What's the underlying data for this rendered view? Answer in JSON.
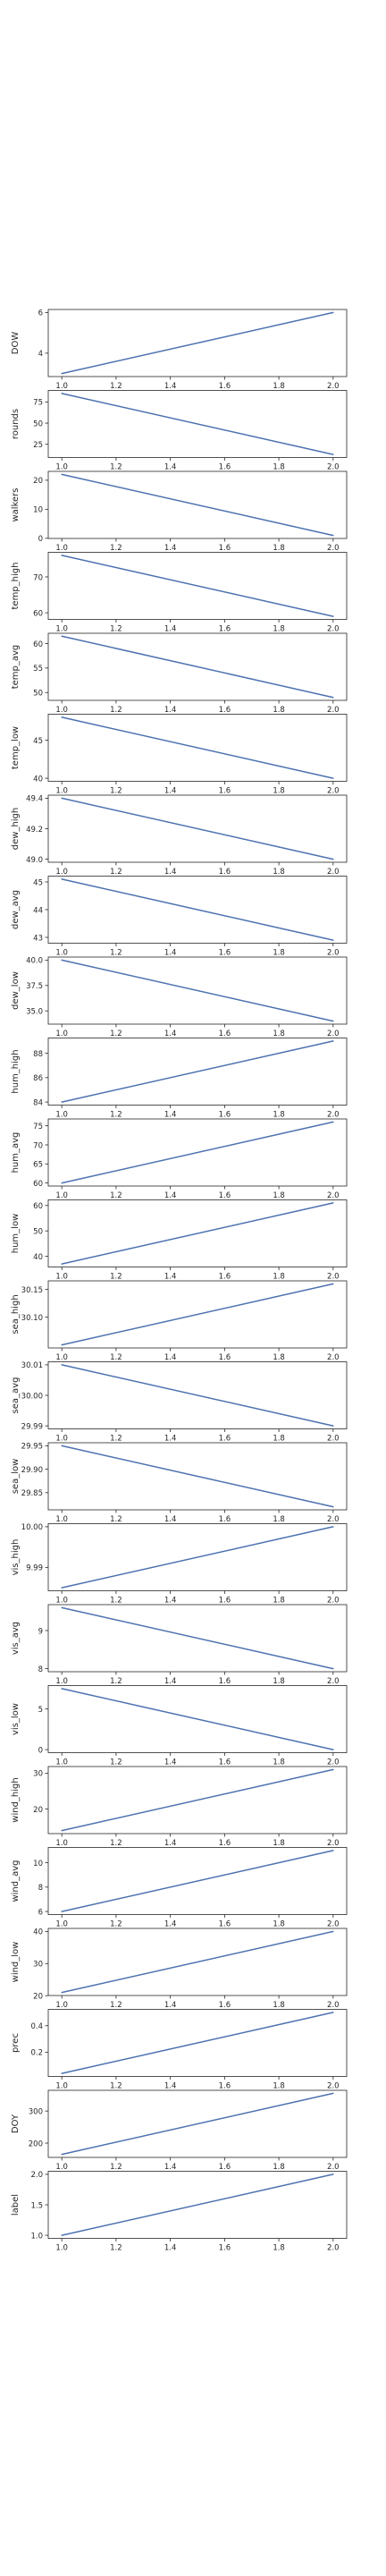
{
  "chart_data": [
    {
      "type": "line",
      "ylabel": "DOW",
      "x": [
        1,
        2
      ],
      "values": [
        3,
        6
      ],
      "yticks": [
        "4",
        "6"
      ],
      "ylim": [
        2.85,
        6.15
      ]
    },
    {
      "type": "line",
      "ylabel": "rounds",
      "x": [
        1,
        2
      ],
      "values": [
        85,
        13
      ],
      "yticks": [
        "25",
        "50",
        "75"
      ],
      "ylim": [
        9.4,
        88.6
      ]
    },
    {
      "type": "line",
      "ylabel": "walkers",
      "x": [
        1,
        2
      ],
      "values": [
        22,
        1
      ],
      "yticks": [
        "0",
        "10",
        "20"
      ],
      "ylim": [
        -0.05,
        23.05
      ]
    },
    {
      "type": "line",
      "ylabel": "temp_high",
      "x": [
        1,
        2
      ],
      "values": [
        76,
        59
      ],
      "yticks": [
        "60",
        "70"
      ],
      "ylim": [
        58.15,
        76.85
      ]
    },
    {
      "type": "line",
      "ylabel": "temp_avg",
      "x": [
        1,
        2
      ],
      "values": [
        61.5,
        49
      ],
      "yticks": [
        "50",
        "55",
        "60"
      ],
      "ylim": [
        48.4,
        62.1
      ]
    },
    {
      "type": "line",
      "ylabel": "temp_low",
      "x": [
        1,
        2
      ],
      "values": [
        48,
        40
      ],
      "yticks": [
        "40",
        "45"
      ],
      "ylim": [
        39.6,
        48.4
      ]
    },
    {
      "type": "line",
      "ylabel": "dew_high",
      "x": [
        1,
        2
      ],
      "values": [
        49.4,
        49
      ],
      "yticks": [
        "49.0",
        "49.2",
        "49.4"
      ],
      "ylim": [
        48.98,
        49.42
      ]
    },
    {
      "type": "line",
      "ylabel": "dew_avg",
      "x": [
        1,
        2
      ],
      "values": [
        45.1,
        42.9
      ],
      "yticks": [
        "43",
        "44",
        "45"
      ],
      "ylim": [
        42.79,
        45.21
      ]
    },
    {
      "type": "line",
      "ylabel": "dew_low",
      "x": [
        1,
        2
      ],
      "values": [
        40,
        34
      ],
      "yticks": [
        "35.0",
        "37.5",
        "40.0"
      ],
      "ylim": [
        33.7,
        40.3
      ]
    },
    {
      "type": "line",
      "ylabel": "hum_high",
      "x": [
        1,
        2
      ],
      "values": [
        84,
        89
      ],
      "yticks": [
        "84",
        "86",
        "88"
      ],
      "ylim": [
        83.75,
        89.25
      ]
    },
    {
      "type": "line",
      "ylabel": "hum_avg",
      "x": [
        1,
        2
      ],
      "values": [
        60,
        76
      ],
      "yticks": [
        "60",
        "65",
        "70",
        "75"
      ],
      "ylim": [
        59.2,
        76.8
      ]
    },
    {
      "type": "line",
      "ylabel": "hum_low",
      "x": [
        1,
        2
      ],
      "values": [
        37,
        61
      ],
      "yticks": [
        "40",
        "50",
        "60"
      ],
      "ylim": [
        35.8,
        62.2
      ]
    },
    {
      "type": "line",
      "ylabel": "sea_high",
      "x": [
        1,
        2
      ],
      "values": [
        30.05,
        30.16
      ],
      "yticks": [
        "30.10",
        "30.15"
      ],
      "ylim": [
        30.0445,
        30.1655
      ]
    },
    {
      "type": "line",
      "ylabel": "sea_avg",
      "x": [
        1,
        2
      ],
      "values": [
        30.01,
        29.99
      ],
      "yticks": [
        "29.99",
        "30.00",
        "30.01"
      ],
      "ylim": [
        29.989,
        30.011
      ]
    },
    {
      "type": "line",
      "ylabel": "sea_low",
      "x": [
        1,
        2
      ],
      "values": [
        29.95,
        29.82
      ],
      "yticks": [
        "29.85",
        "29.90",
        "29.95"
      ],
      "ylim": [
        29.8135,
        29.9565
      ]
    },
    {
      "type": "line",
      "ylabel": "vis_high",
      "x": [
        1,
        2
      ],
      "values": [
        9.985,
        10.0
      ],
      "yticks": [
        "9.99",
        "10.00"
      ],
      "ylim": [
        9.98425,
        10.00075
      ]
    },
    {
      "type": "line",
      "ylabel": "vis_avg",
      "x": [
        1,
        2
      ],
      "values": [
        9.6,
        8
      ],
      "yticks": [
        "8",
        "9"
      ],
      "ylim": [
        7.92,
        9.68
      ]
    },
    {
      "type": "line",
      "ylabel": "vis_low",
      "x": [
        1,
        2
      ],
      "values": [
        7.5,
        0
      ],
      "yticks": [
        "0",
        "5"
      ],
      "ylim": [
        -0.375,
        7.875
      ]
    },
    {
      "type": "line",
      "ylabel": "wind_high",
      "x": [
        1,
        2
      ],
      "values": [
        14,
        31
      ],
      "yticks": [
        "20",
        "30"
      ],
      "ylim": [
        13.15,
        31.85
      ]
    },
    {
      "type": "line",
      "ylabel": "wind_avg",
      "x": [
        1,
        2
      ],
      "values": [
        6,
        11
      ],
      "yticks": [
        "6",
        "8",
        "10"
      ],
      "ylim": [
        5.75,
        11.25
      ]
    },
    {
      "type": "line",
      "ylabel": "wind_low",
      "x": [
        1,
        2
      ],
      "values": [
        21,
        40
      ],
      "yticks": [
        "20",
        "30",
        "40"
      ],
      "ylim": [
        20.05,
        40.95
      ]
    },
    {
      "type": "line",
      "ylabel": "prec",
      "x": [
        1,
        2
      ],
      "values": [
        0.04,
        0.5
      ],
      "yticks": [
        "0.2",
        "0.4"
      ],
      "ylim": [
        0.017,
        0.523
      ]
    },
    {
      "type": "line",
      "ylabel": "DOY",
      "x": [
        1,
        2
      ],
      "values": [
        165,
        355
      ],
      "yticks": [
        "200",
        "300"
      ],
      "ylim": [
        155.5,
        364.5
      ]
    },
    {
      "type": "line",
      "ylabel": "label",
      "x": [
        1,
        2
      ],
      "values": [
        1,
        2
      ],
      "yticks": [
        "1.0",
        "1.5",
        "2.0"
      ],
      "ylim": [
        0.95,
        2.05
      ]
    }
  ],
  "x_axis": {
    "ticks": [
      "1.0",
      "1.2",
      "1.4",
      "1.6",
      "1.8",
      "2.0"
    ],
    "xlim": [
      0.95,
      2.05
    ]
  },
  "style": {
    "line_color": "#4c72b0",
    "axis_color": "#262626",
    "background": "#ffffff"
  }
}
